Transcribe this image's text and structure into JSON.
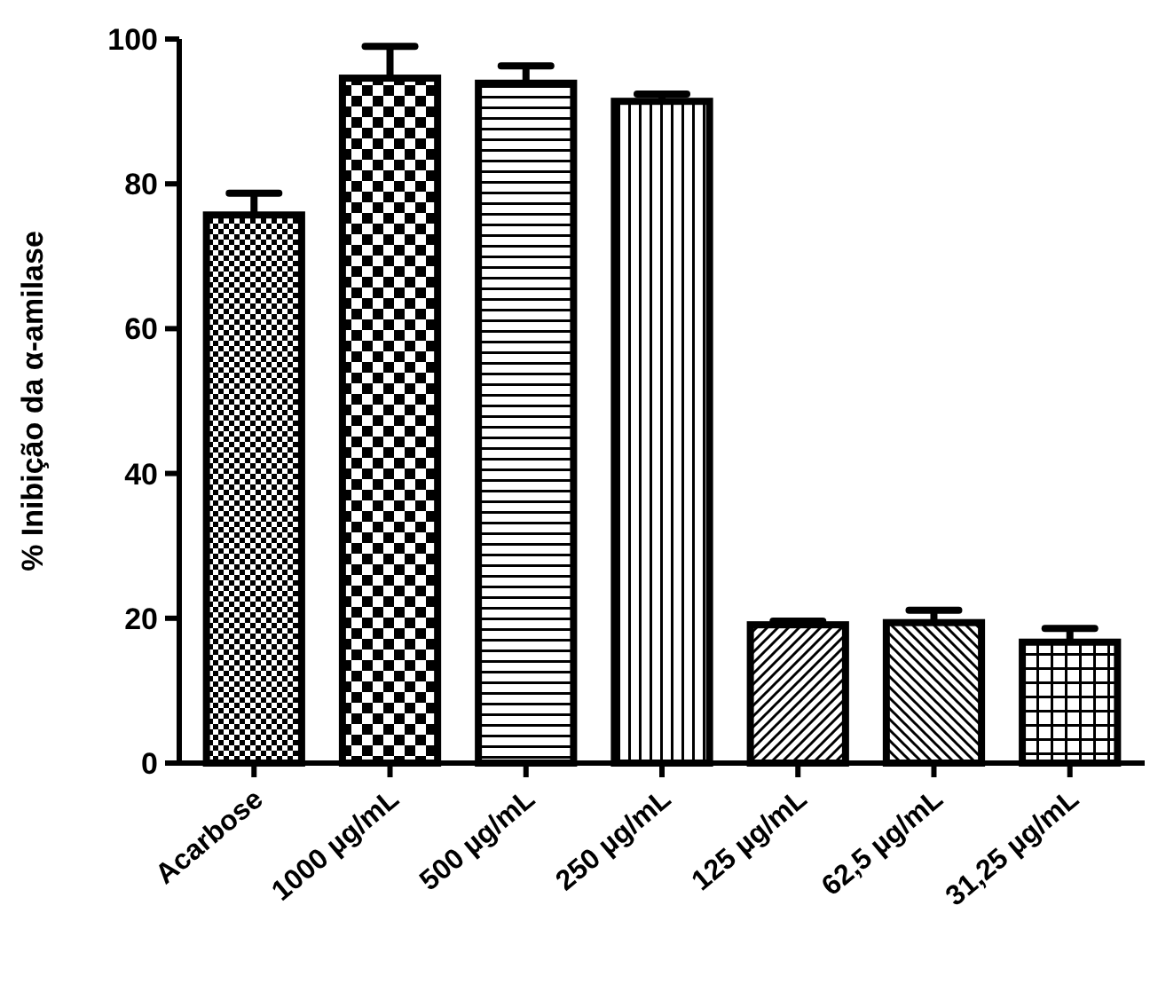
{
  "chart_data": {
    "type": "bar",
    "ylabel": "% Inibição da α-amilase",
    "categories": [
      "Acarbose",
      "1000 µg/mL",
      "500 µg/mL",
      "250 µg/mL",
      "125 µg/mL",
      "62,5 µg/mL",
      "31,25 µg/mL"
    ],
    "series": [
      {
        "color": "#000000",
        "values": [
          75.7,
          94.6,
          93.9,
          91.4,
          19.1,
          19.4,
          16.7
        ],
        "errors": [
          3,
          4.4,
          2.4,
          1,
          0.5,
          1.7,
          1.9
        ]
      }
    ],
    "ylim": [
      0,
      100
    ],
    "yticks": [
      0,
      20,
      40,
      60,
      80,
      100
    ],
    "grid": false
  }
}
